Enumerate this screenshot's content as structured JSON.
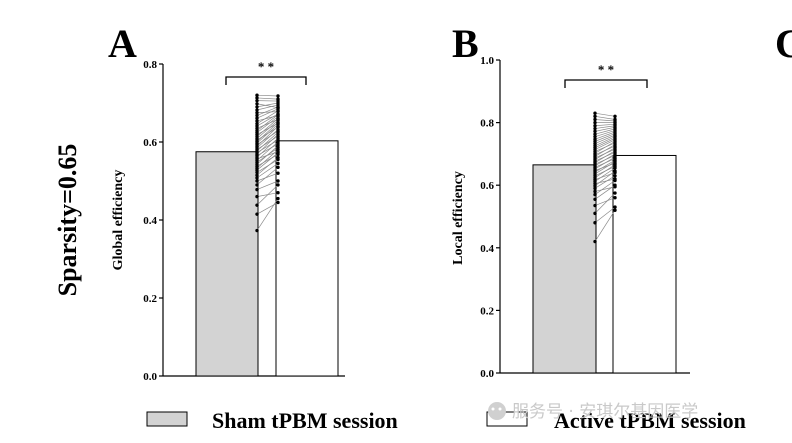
{
  "row_label": "Sparsity=0.65",
  "legend": [
    {
      "label": "Sham tPBM session",
      "color": "#d3d3d3"
    },
    {
      "label": "Active tPBM session",
      "color": "#ffffff"
    }
  ],
  "watermark": "服务号 · 安琪尔基因医学",
  "chart_data": [
    {
      "type": "bar",
      "panel": "A",
      "title": "",
      "ylabel": "Global efficiency",
      "ylim": [
        0,
        0.8
      ],
      "yticks": [
        "0.0",
        "0.2",
        "0.4",
        "0.6",
        "0.8"
      ],
      "categories": [
        "Sham tPBM session",
        "Active tPBM session"
      ],
      "values": [
        0.575,
        0.603
      ],
      "significance": "* *",
      "paired_points": {
        "sham": [
          0.373,
          0.415,
          0.438,
          0.46,
          0.478,
          0.49,
          0.5,
          0.508,
          0.515,
          0.522,
          0.528,
          0.533,
          0.538,
          0.543,
          0.548,
          0.553,
          0.557,
          0.561,
          0.565,
          0.569,
          0.573,
          0.577,
          0.581,
          0.585,
          0.589,
          0.593,
          0.597,
          0.601,
          0.605,
          0.609,
          0.614,
          0.619,
          0.624,
          0.629,
          0.635,
          0.641,
          0.647,
          0.654,
          0.661,
          0.668,
          0.675,
          0.682,
          0.69,
          0.698,
          0.706,
          0.713,
          0.72
        ],
        "active": [
          0.455,
          0.445,
          0.49,
          0.47,
          0.5,
          0.535,
          0.52,
          0.545,
          0.56,
          0.555,
          0.572,
          0.58,
          0.568,
          0.59,
          0.585,
          0.6,
          0.575,
          0.61,
          0.595,
          0.62,
          0.605,
          0.625,
          0.615,
          0.632,
          0.64,
          0.628,
          0.645,
          0.65,
          0.638,
          0.655,
          0.66,
          0.648,
          0.665,
          0.67,
          0.658,
          0.672,
          0.68,
          0.668,
          0.685,
          0.69,
          0.678,
          0.695,
          0.7,
          0.688,
          0.705,
          0.71,
          0.718
        ]
      }
    },
    {
      "type": "bar",
      "panel": "B",
      "title": "",
      "ylabel": "Local efficiency",
      "ylim": [
        0,
        1.0
      ],
      "yticks": [
        "0.0",
        "0.2",
        "0.4",
        "0.6",
        "0.8",
        "1.0"
      ],
      "categories": [
        "Sham tPBM session",
        "Active tPBM session"
      ],
      "values": [
        0.665,
        0.695
      ],
      "significance": "* *",
      "paired_points": {
        "sham": [
          0.42,
          0.48,
          0.51,
          0.535,
          0.555,
          0.57,
          0.58,
          0.59,
          0.598,
          0.605,
          0.612,
          0.618,
          0.624,
          0.63,
          0.636,
          0.642,
          0.647,
          0.652,
          0.657,
          0.662,
          0.667,
          0.672,
          0.677,
          0.682,
          0.687,
          0.692,
          0.697,
          0.702,
          0.708,
          0.714,
          0.72,
          0.726,
          0.733,
          0.74,
          0.747,
          0.755,
          0.763,
          0.772,
          0.781,
          0.79,
          0.8,
          0.81,
          0.82,
          0.83
        ],
        "active": [
          0.52,
          0.53,
          0.575,
          0.56,
          0.6,
          0.615,
          0.595,
          0.63,
          0.645,
          0.62,
          0.655,
          0.64,
          0.665,
          0.66,
          0.675,
          0.68,
          0.67,
          0.69,
          0.685,
          0.7,
          0.695,
          0.71,
          0.705,
          0.72,
          0.715,
          0.73,
          0.725,
          0.74,
          0.735,
          0.745,
          0.75,
          0.755,
          0.76,
          0.765,
          0.77,
          0.775,
          0.78,
          0.785,
          0.79,
          0.795,
          0.8,
          0.805,
          0.81,
          0.82
        ]
      }
    }
  ]
}
